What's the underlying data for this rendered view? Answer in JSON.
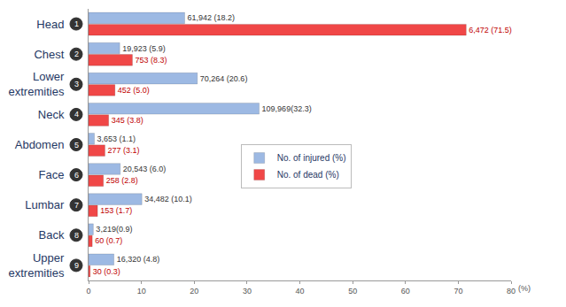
{
  "chart_data": {
    "type": "bar",
    "orientation": "horizontal",
    "categories": [
      "Head",
      "Chest",
      "Lower extremities",
      "Neck",
      "Abdomen",
      "Face",
      "Lumbar",
      "Back",
      "Upper extremities"
    ],
    "annotations": [
      "1",
      "2",
      "3",
      "4",
      "5",
      "6",
      "7",
      "8",
      "9"
    ],
    "xlabel": "(%)",
    "xlim": [
      0,
      80
    ],
    "xticks": [
      0,
      10,
      20,
      30,
      40,
      50,
      60,
      70,
      80
    ],
    "grid": false,
    "legend": "center",
    "data_labels": true,
    "series": [
      {
        "name": "No. of injured (%)",
        "color": "#9db9e3",
        "values": [
          18.2,
          5.9,
          20.6,
          32.3,
          1.1,
          6.0,
          10.1,
          0.9,
          4.8
        ],
        "value_labels": [
          "61,942 (18.2)",
          "19,923 (5.9)",
          "70,264 (20.6)",
          "109,969(32.3)",
          "3,653 (1.1)",
          "20,543 (6.0)",
          "34,482 (10.1)",
          "3,219(0.9)",
          "16,320 (4.8)"
        ]
      },
      {
        "name": "No. of dead (%)",
        "color": "#f04747",
        "values": [
          71.5,
          8.3,
          5.0,
          3.8,
          3.1,
          2.8,
          1.7,
          0.7,
          0.3
        ],
        "value_labels": [
          "6,472 (71.5)",
          "753 (8.3)",
          "452 (5.0)",
          "345 (3.8)",
          "277 (3.1)",
          "258 (2.8)",
          "153 (1.7)",
          "60 (0.7)",
          "30 (0.3)"
        ]
      }
    ]
  }
}
